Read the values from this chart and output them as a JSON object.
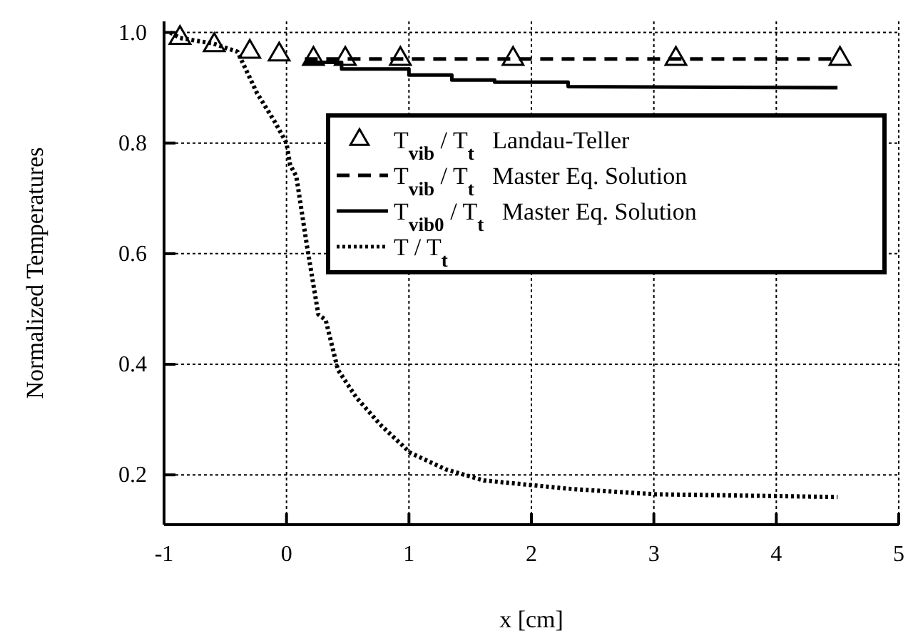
{
  "chart_data": {
    "type": "line",
    "xlabel": "x [cm]",
    "ylabel": "Normalized Temperatures",
    "xlim": [
      -1,
      5
    ],
    "ylim": [
      0.11,
      1.02
    ],
    "xticks": [
      -1,
      0,
      1,
      2,
      3,
      4,
      5
    ],
    "yticks": [
      0.2,
      0.4,
      0.6,
      0.8,
      {
        "value": 1,
        "label": "1.0"
      }
    ],
    "grid": true,
    "legend": "right",
    "series": [
      {
        "name": "T$_{vib}$ / T$_{t}$   Landau-Teller",
        "type": "scatter",
        "marker": "triangle",
        "color": "#000000",
        "x": [
          -0.87,
          -0.59,
          -0.3,
          -0.06,
          0.22,
          0.48,
          0.93,
          1.85,
          3.18,
          4.52
        ],
        "values": [
          0.99,
          0.977,
          0.965,
          0.96,
          0.952,
          0.952,
          0.952,
          0.952,
          0.952,
          0.952
        ]
      },
      {
        "name": "T$_{vib}$ / T$_{t}$   Master Eq. Solution",
        "line_style": "dashed",
        "color": "#000000",
        "x": [
          0.15,
          4.5
        ],
        "values": [
          0.952,
          0.952
        ]
      },
      {
        "name": "T$_{vib0}$ / T$_{t}$   Master Eq. Solution",
        "line_style": "solid",
        "color": "#000000",
        "x": [
          0.15,
          0.45,
          0.45,
          1.0,
          1.0,
          1.35,
          1.35,
          1.7,
          1.7,
          2.3,
          2.3,
          4.5
        ],
        "values": [
          0.946,
          0.946,
          0.934,
          0.934,
          0.923,
          0.923,
          0.914,
          0.914,
          0.91,
          0.91,
          0.902,
          0.9
        ]
      },
      {
        "name": "T / T$_{t}$",
        "line_style": "dotted",
        "color": "#000000",
        "x": [
          -0.95,
          -0.87,
          -0.6,
          -0.4,
          -0.24,
          -0.1,
          0,
          0.03,
          0.08,
          0.17,
          0.26,
          0.32,
          0.42,
          0.57,
          0.77,
          1.01,
          1.3,
          1.61,
          1.84,
          2.3,
          3,
          4.5
        ],
        "values": [
          1.0,
          0.99,
          0.98,
          0.965,
          0.89,
          0.84,
          0.8,
          0.76,
          0.74,
          0.61,
          0.49,
          0.48,
          0.39,
          0.34,
          0.29,
          0.24,
          0.21,
          0.19,
          0.185,
          0.175,
          0.165,
          0.16
        ]
      }
    ]
  }
}
